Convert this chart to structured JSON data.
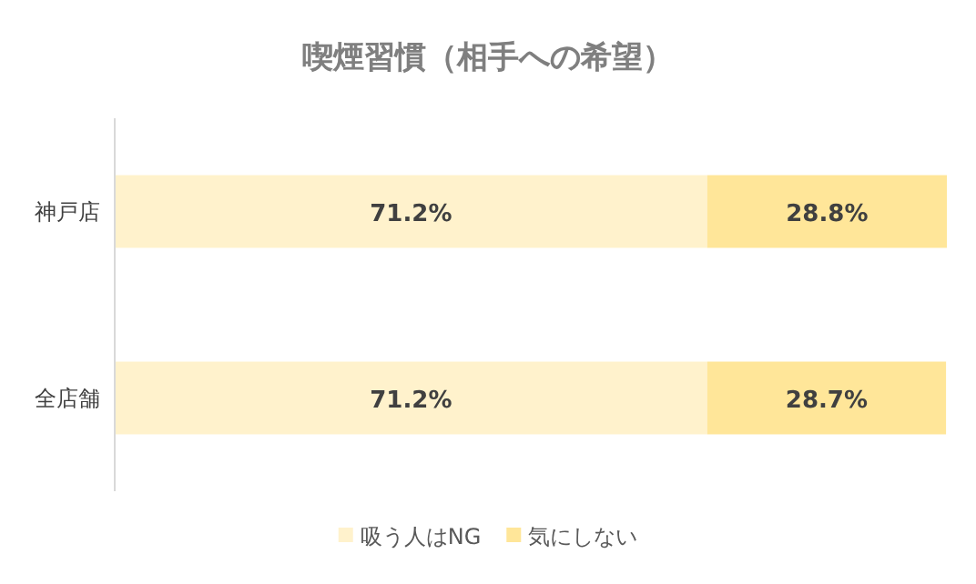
{
  "chart_data": {
    "type": "bar",
    "orientation": "horizontal",
    "stacked": true,
    "title": "喫煙習慣（相手への希望）",
    "categories": [
      "神戸店",
      "全店舗"
    ],
    "legend": "bottom",
    "series": [
      {
        "name": "吸う人はNG",
        "color": "#fff2cc",
        "values": [
          71.2,
          71.2
        ],
        "value_labels": [
          "71.2%",
          "71.2%"
        ]
      },
      {
        "name": "気にしない",
        "color": "#ffe699",
        "values": [
          28.8,
          28.7
        ],
        "value_labels": [
          "28.8%",
          "28.7%"
        ]
      }
    ]
  }
}
